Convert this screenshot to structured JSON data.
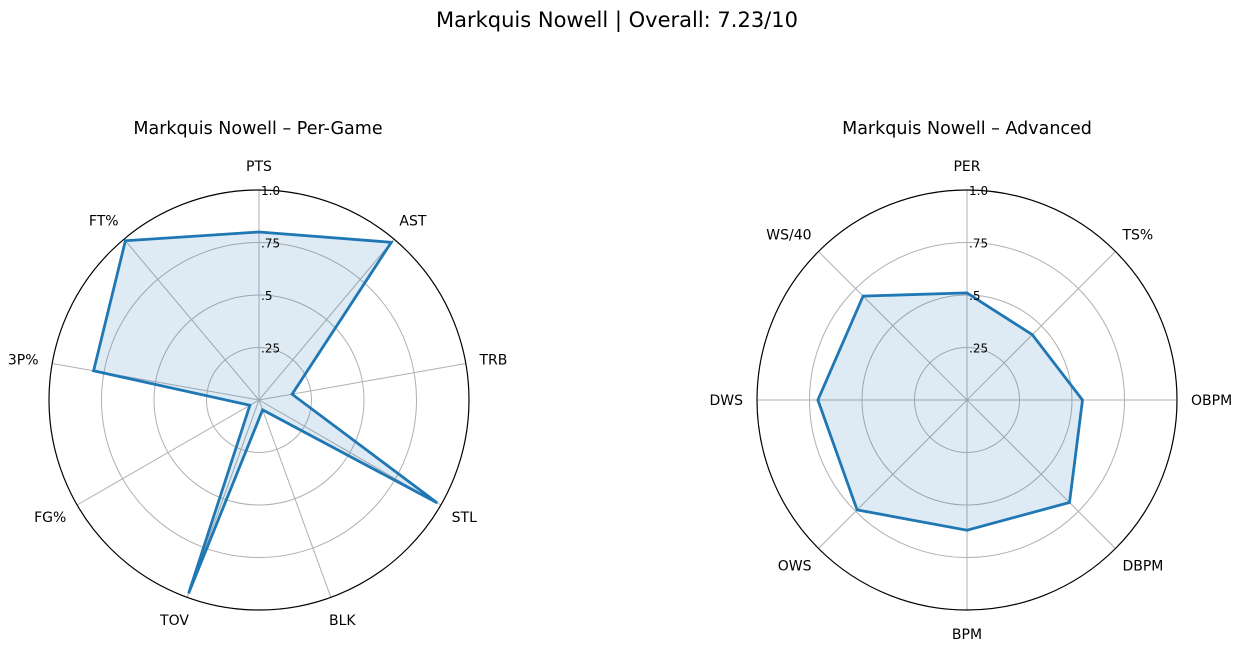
{
  "suptitle": "Markquis Nowell | Overall: 7.23/10",
  "colors": {
    "line": "#1f77b4",
    "fill": "#1f77b4",
    "grid": "#b0b0b0",
    "frame": "#000000"
  },
  "chart_data": [
    {
      "type": "radar",
      "title": "Markquis Nowell – Per-Game",
      "rlim": [
        0,
        1
      ],
      "rticks": [
        0.25,
        0.5,
        0.75,
        1.0
      ],
      "rtick_labels": [
        ".25",
        ".5",
        ".75",
        "1.0"
      ],
      "grid": true,
      "categories": [
        "PTS",
        "AST",
        "TRB",
        "STL",
        "BLK",
        "TOV",
        "FG%",
        "3P%",
        "FT%"
      ],
      "values": [
        0.8,
        0.98,
        0.16,
        0.98,
        0.05,
        0.98,
        0.05,
        0.8,
        0.99
      ]
    },
    {
      "type": "radar",
      "title": "Markquis Nowell – Advanced",
      "rlim": [
        0,
        1
      ],
      "rticks": [
        0.25,
        0.5,
        0.75,
        1.0
      ],
      "rtick_labels": [
        ".25",
        ".5",
        ".75",
        "1.0"
      ],
      "grid": true,
      "categories": [
        "PER",
        "TS%",
        "OBPM",
        "DBPM",
        "BPM",
        "OWS",
        "DWS",
        "WS/40"
      ],
      "values": [
        0.51,
        0.44,
        0.55,
        0.69,
        0.62,
        0.74,
        0.71,
        0.7
      ]
    }
  ]
}
